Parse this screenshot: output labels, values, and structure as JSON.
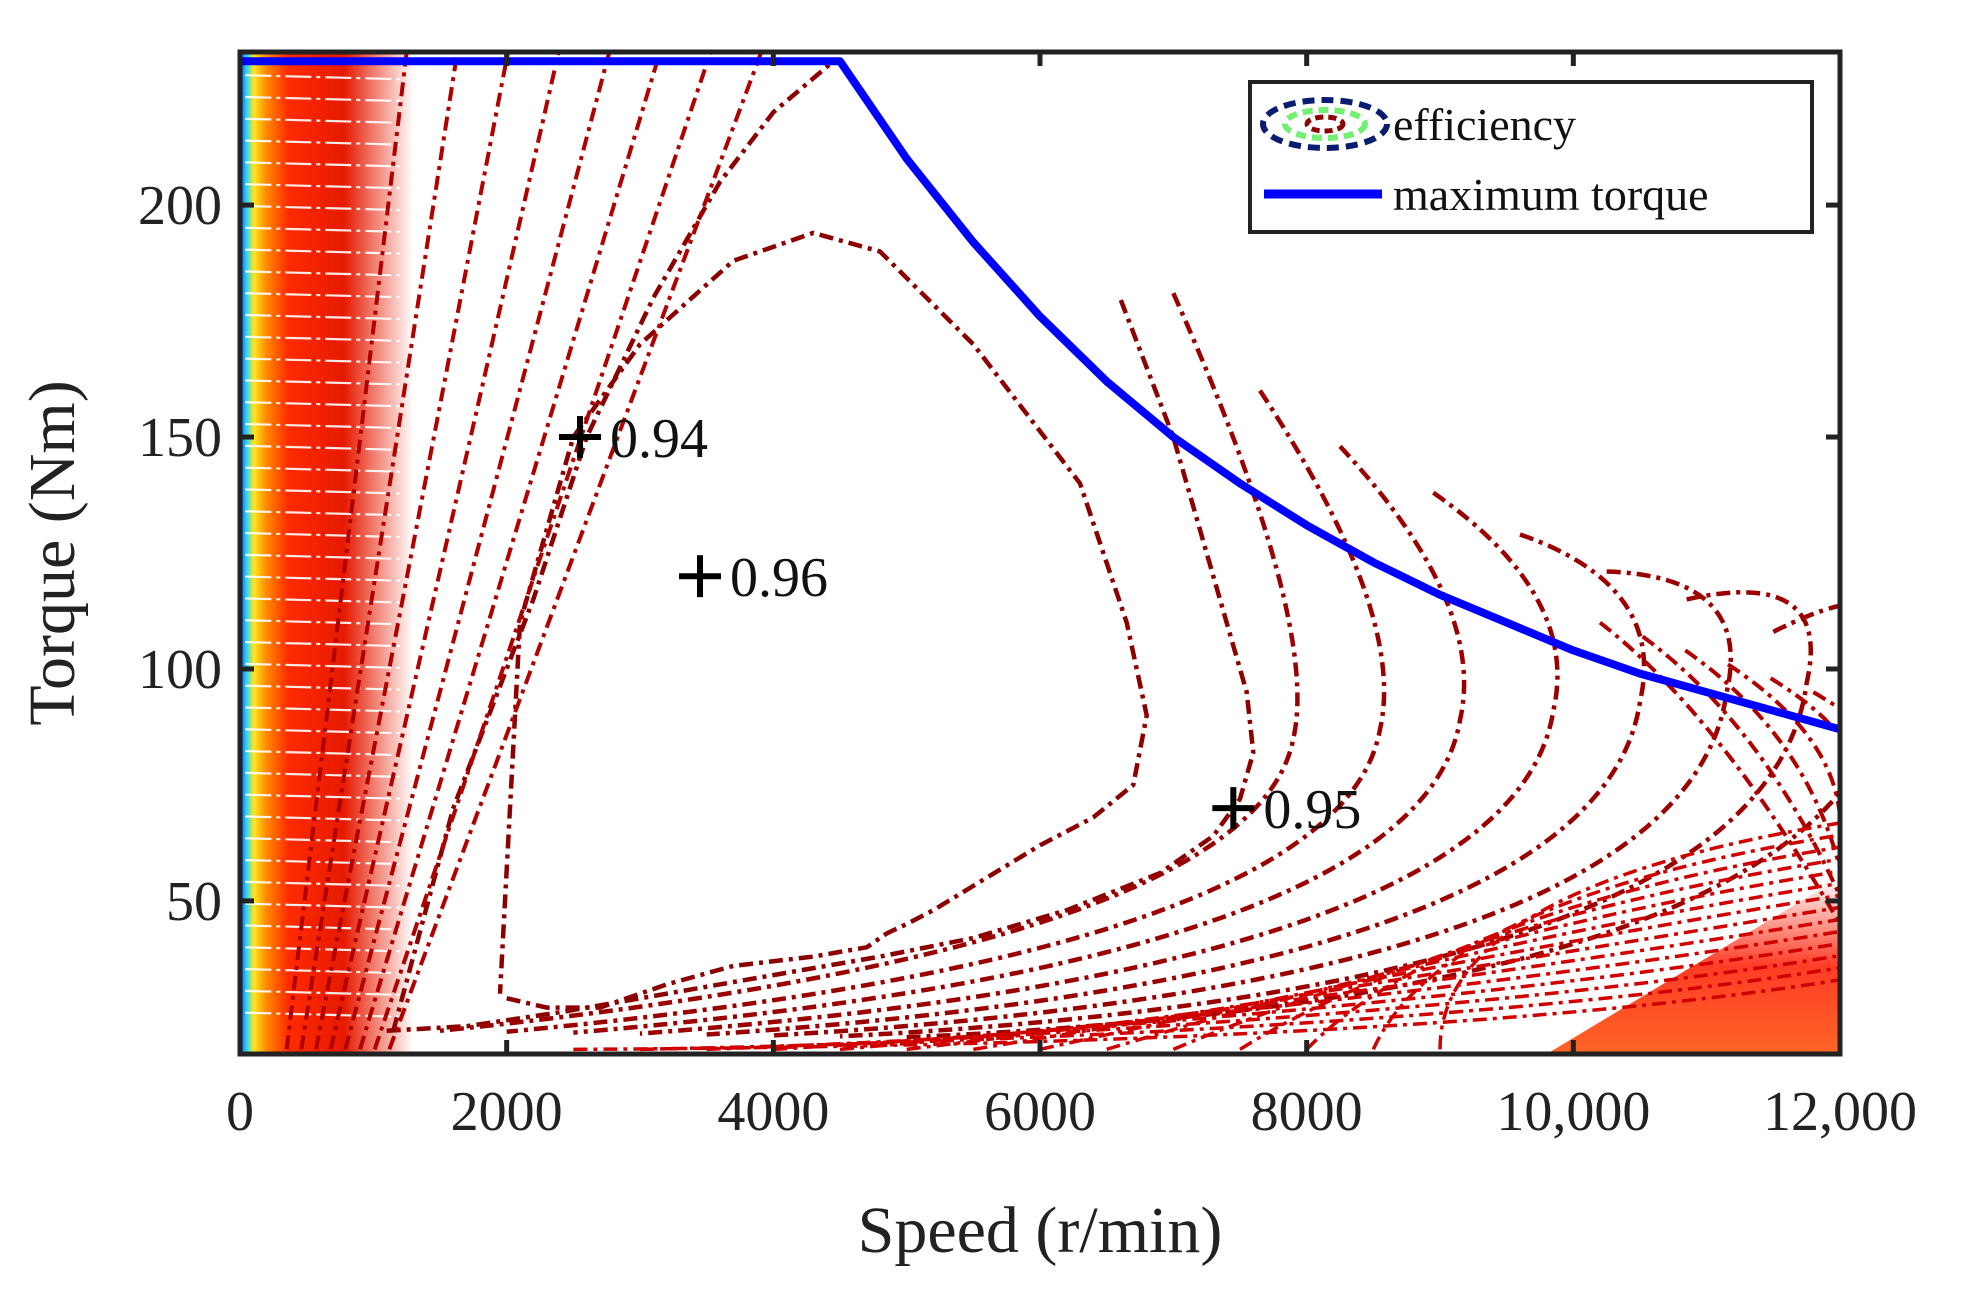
{
  "chart_data": {
    "type": "line",
    "title": "",
    "xlabel": "Speed (r/min)",
    "ylabel": "Torque (Nm)",
    "xlim": [
      0,
      12000
    ],
    "ylim": [
      17,
      233
    ],
    "xticks": [
      0,
      2000,
      4000,
      6000,
      8000,
      10000,
      12000
    ],
    "xtick_labels": [
      "0",
      "2000",
      "4000",
      "6000",
      "8000",
      "10,000",
      "12,000"
    ],
    "yticks": [
      50,
      100,
      150,
      200
    ],
    "ytick_labels": [
      "50",
      "100",
      "150",
      "200"
    ],
    "grid": false,
    "legend_position": "top-right",
    "legend": [
      {
        "label": "efficiency",
        "style": "dash-dot contours",
        "color": "#8b0000"
      },
      {
        "label": "maximum torque",
        "style": "solid",
        "color": "#0000ff"
      }
    ],
    "series": [
      {
        "name": "maximum torque",
        "color": "#0000ff",
        "x": [
          0,
          4500,
          5000,
          5500,
          6000,
          6500,
          7000,
          7500,
          8000,
          8500,
          9000,
          9500,
          10000,
          10500,
          11000,
          11500,
          12000
        ],
        "y": [
          231,
          231,
          210,
          192,
          176,
          162,
          150,
          140,
          131,
          123,
          116,
          110,
          104,
          99,
          95,
          91,
          87
        ]
      }
    ],
    "efficiency_contours": [
      {
        "level": 0.96,
        "x": [
          2000,
          2300,
          2700,
          3200,
          3700,
          4300,
          4500,
          4700,
          4850,
          5000,
          5200,
          5600,
          6000,
          6400,
          6700,
          6800,
          6650,
          6300,
          5500,
          4800,
          4300,
          3700,
          3000,
          2500,
          2100,
          1950
        ],
        "y": [
          29,
          27,
          27,
          32,
          36,
          38,
          39,
          40,
          43,
          45,
          48,
          55,
          62,
          68,
          75,
          90,
          110,
          140,
          170,
          190,
          194,
          188,
          170,
          150,
          110,
          30
        ]
      },
      {
        "level": 0.95,
        "x": [
          1100,
          1700,
          2400,
          3200,
          4000,
          4800,
          5500,
          6200,
          6900,
          7300,
          7500,
          7600,
          7550,
          7300,
          7000,
          6600
        ],
        "y": [
          22,
          23,
          26,
          30,
          34,
          38,
          42,
          48,
          56,
          64,
          72,
          82,
          95,
          120,
          150,
          180
        ]
      },
      {
        "level": 0.94,
        "x": [
          1150,
          1600,
          2200,
          2600,
          3100,
          3600,
          4000,
          4450
        ],
        "y": [
          22,
          70,
          115,
          150,
          180,
          205,
          220,
          231
        ]
      }
    ],
    "annotations": [
      {
        "x": 2550,
        "y": 150,
        "text": "0.94"
      },
      {
        "x": 3450,
        "y": 120,
        "text": "0.96"
      },
      {
        "x": 7450,
        "y": 70,
        "text": "0.95"
      }
    ]
  }
}
